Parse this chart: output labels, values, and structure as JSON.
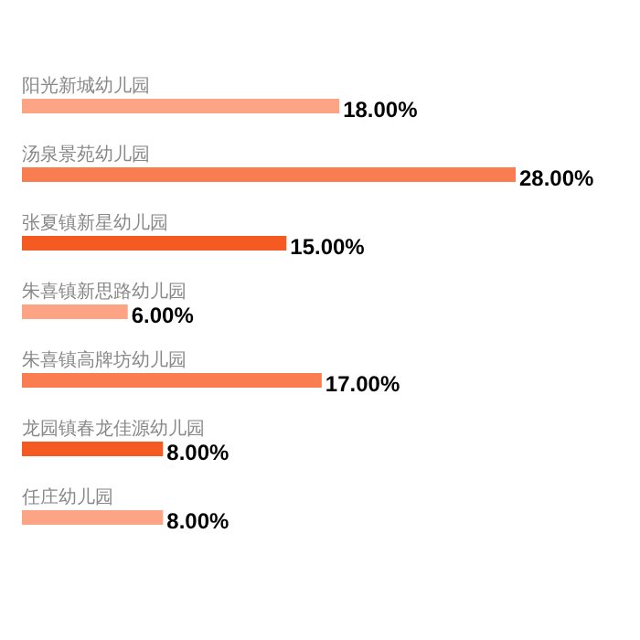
{
  "chart_data": {
    "type": "bar",
    "orientation": "horizontal",
    "categories": [
      "阳光新城幼儿园",
      "汤泉景苑幼儿园",
      "张夏镇新星幼儿园",
      "朱喜镇新思路幼儿园",
      "朱喜镇高牌坊幼儿园",
      "龙园镇春龙佳源幼儿园",
      "任庄幼儿园"
    ],
    "values": [
      18,
      28,
      15,
      6,
      17,
      8,
      8
    ],
    "colors": [
      "#fca483",
      "#f97d50",
      "#f45a22",
      "#fca483",
      "#f97d50",
      "#f45a22",
      "#fca483"
    ],
    "value_labels": [
      "18.00%",
      "28.00%",
      "15.00%",
      "6.00%",
      "17.00%",
      "8.00%",
      "8.00%"
    ]
  }
}
